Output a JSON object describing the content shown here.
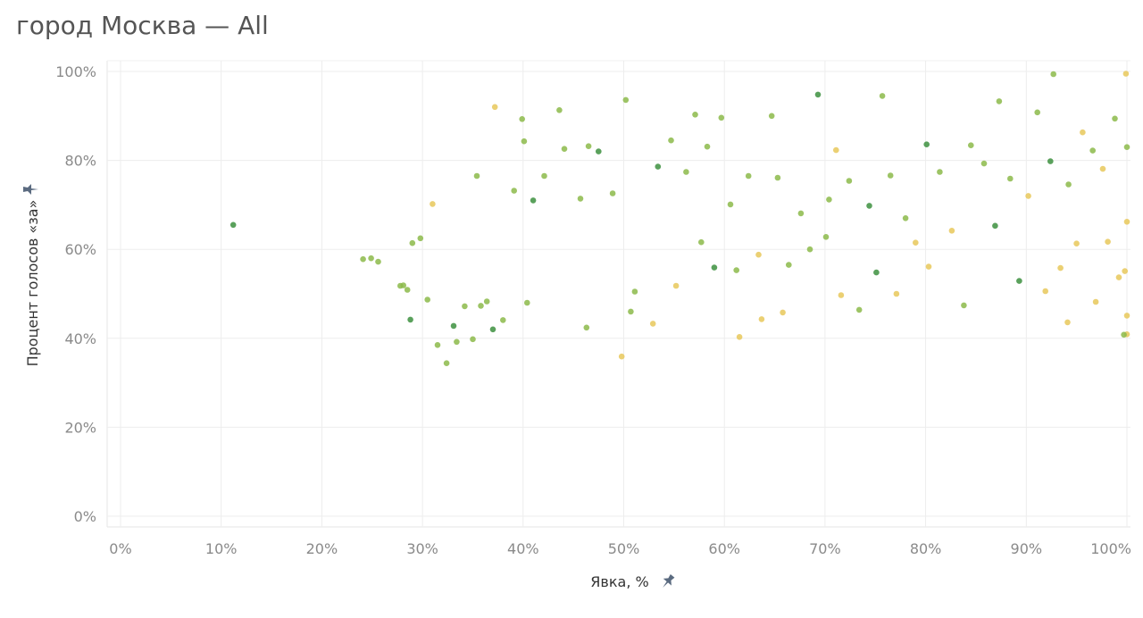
{
  "title": "город Москва — All",
  "chart_data": {
    "type": "scatter",
    "title": "город Москва — All",
    "xlabel": "Явка, %",
    "ylabel": "Процент голосов «за»",
    "xlim": [
      0,
      100
    ],
    "ylim": [
      0,
      100
    ],
    "x_ticks": [
      "0%",
      "10%",
      "20%",
      "30%",
      "40%",
      "50%",
      "60%",
      "70%",
      "80%",
      "90%",
      "100%"
    ],
    "y_ticks": [
      "0%",
      "20%",
      "40%",
      "60%",
      "80%",
      "100%"
    ],
    "grid": true,
    "colors": {
      "low": "#e8c85a",
      "mid": "#8cba4a",
      "high": "#3d9140"
    },
    "series": [
      {
        "points": [
          [
            11.2,
            65.5
          ],
          [
            24.1,
            57.8
          ],
          [
            24.9,
            58.0
          ],
          [
            25.6,
            57.2
          ],
          [
            27.8,
            51.8
          ],
          [
            28.1,
            51.9
          ],
          [
            28.5,
            50.9
          ],
          [
            28.8,
            44.2
          ],
          [
            29.0,
            61.4
          ],
          [
            29.8,
            62.5
          ],
          [
            30.5,
            48.7
          ],
          [
            31.0,
            70.2
          ],
          [
            31.5,
            38.5
          ],
          [
            32.4,
            34.4
          ],
          [
            33.1,
            42.8
          ],
          [
            33.4,
            39.2
          ],
          [
            34.2,
            47.2
          ],
          [
            35.0,
            39.8
          ],
          [
            35.4,
            76.5
          ],
          [
            35.8,
            47.3
          ],
          [
            36.4,
            48.3
          ],
          [
            37.0,
            42.0
          ],
          [
            37.2,
            92.0
          ],
          [
            38.0,
            44.1
          ],
          [
            39.1,
            73.2
          ],
          [
            39.9,
            89.3
          ],
          [
            40.1,
            84.3
          ],
          [
            40.4,
            48.0
          ],
          [
            41.0,
            71.0
          ],
          [
            42.1,
            76.5
          ],
          [
            43.6,
            91.3
          ],
          [
            44.1,
            82.6
          ],
          [
            45.7,
            71.4
          ],
          [
            46.3,
            42.4
          ],
          [
            46.5,
            83.2
          ],
          [
            47.5,
            82.0
          ],
          [
            48.9,
            72.6
          ],
          [
            49.8,
            35.9
          ],
          [
            50.2,
            93.6
          ],
          [
            50.7,
            46.0
          ],
          [
            51.1,
            50.5
          ],
          [
            52.9,
            43.3
          ],
          [
            53.4,
            78.6
          ],
          [
            54.7,
            84.5
          ],
          [
            55.2,
            51.8
          ],
          [
            56.2,
            77.4
          ],
          [
            57.1,
            90.3
          ],
          [
            57.7,
            61.6
          ],
          [
            58.3,
            83.1
          ],
          [
            59.0,
            55.9
          ],
          [
            59.7,
            89.6
          ],
          [
            60.6,
            70.1
          ],
          [
            61.2,
            55.3
          ],
          [
            61.5,
            40.3
          ],
          [
            62.4,
            76.5
          ],
          [
            63.4,
            58.8
          ],
          [
            63.7,
            44.3
          ],
          [
            64.7,
            90.0
          ],
          [
            65.3,
            76.1
          ],
          [
            65.8,
            45.8
          ],
          [
            66.4,
            56.5
          ],
          [
            67.6,
            68.1
          ],
          [
            68.5,
            60.0
          ],
          [
            69.3,
            94.8
          ],
          [
            70.1,
            62.8
          ],
          [
            70.4,
            71.2
          ],
          [
            71.1,
            82.3
          ],
          [
            71.6,
            49.7
          ],
          [
            72.4,
            75.4
          ],
          [
            73.4,
            46.4
          ],
          [
            74.4,
            69.8
          ],
          [
            75.1,
            54.8
          ],
          [
            75.7,
            94.5
          ],
          [
            76.5,
            76.6
          ],
          [
            77.1,
            50.0
          ],
          [
            78.0,
            67.0
          ],
          [
            79.0,
            61.5
          ],
          [
            80.1,
            83.6
          ],
          [
            80.3,
            56.1
          ],
          [
            81.4,
            77.4
          ],
          [
            82.6,
            64.2
          ],
          [
            83.8,
            47.4
          ],
          [
            84.5,
            83.4
          ],
          [
            85.8,
            79.3
          ],
          [
            86.9,
            65.3
          ],
          [
            87.3,
            93.3
          ],
          [
            88.4,
            75.9
          ],
          [
            89.3,
            52.9
          ],
          [
            90.2,
            72.0
          ],
          [
            91.1,
            90.8
          ],
          [
            91.9,
            50.6
          ],
          [
            92.4,
            79.8
          ],
          [
            93.4,
            55.8
          ],
          [
            94.2,
            74.6
          ],
          [
            95.0,
            61.3
          ],
          [
            95.6,
            86.3
          ],
          [
            96.6,
            82.2
          ],
          [
            96.9,
            48.2
          ],
          [
            97.6,
            78.1
          ],
          [
            98.1,
            61.7
          ],
          [
            98.8,
            89.4
          ],
          [
            99.2,
            53.7
          ],
          [
            99.8,
            55.1
          ],
          [
            99.9,
            99.5
          ],
          [
            100.0,
            83.0
          ],
          [
            100.0,
            66.2
          ],
          [
            100.0,
            45.1
          ],
          [
            100.0,
            40.9
          ],
          [
            99.7,
            40.8
          ],
          [
            92.7,
            99.4
          ],
          [
            94.1,
            43.6
          ]
        ]
      }
    ]
  }
}
